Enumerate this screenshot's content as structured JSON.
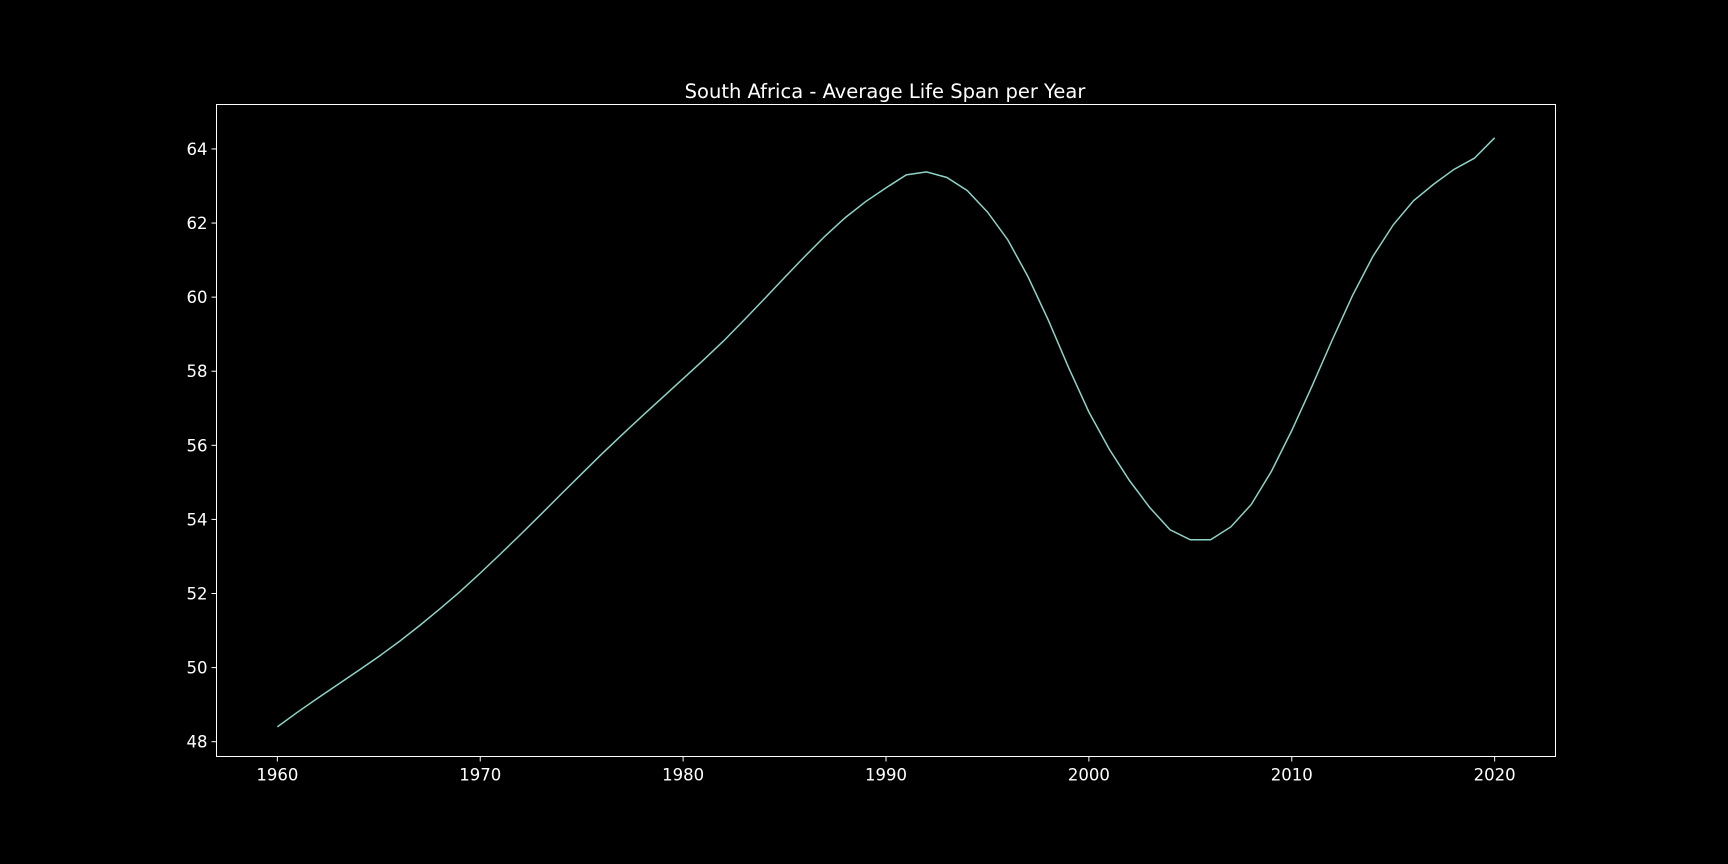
{
  "chart_data": {
    "type": "line",
    "title": "South Africa - Average Life Span per Year",
    "xlabel": "",
    "ylabel": "",
    "xlim": [
      1957,
      2023
    ],
    "ylim": [
      47.6,
      65.2
    ],
    "x_ticks": [
      1960,
      1970,
      1980,
      1990,
      2000,
      2010,
      2020
    ],
    "y_ticks": [
      48,
      50,
      52,
      54,
      56,
      58,
      60,
      62,
      64
    ],
    "grid": false,
    "legend": "none",
    "colors": {
      "background": "#000000",
      "axes": "#ffffff",
      "line": "#8dd3c7"
    },
    "x": [
      1960,
      1961,
      1962,
      1963,
      1964,
      1965,
      1966,
      1967,
      1968,
      1969,
      1970,
      1971,
      1972,
      1973,
      1974,
      1975,
      1976,
      1977,
      1978,
      1979,
      1980,
      1981,
      1982,
      1983,
      1984,
      1985,
      1986,
      1987,
      1988,
      1989,
      1990,
      1991,
      1992,
      1993,
      1994,
      1995,
      1996,
      1997,
      1998,
      1999,
      2000,
      2001,
      2002,
      2003,
      2004,
      2005,
      2006,
      2007,
      2008,
      2009,
      2010,
      2011,
      2012,
      2013,
      2014,
      2015,
      2016,
      2017,
      2018,
      2019,
      2020
    ],
    "series": [
      {
        "values": [
          48.4,
          48.8,
          49.18,
          49.55,
          49.92,
          50.3,
          50.7,
          51.13,
          51.58,
          52.05,
          52.55,
          53.07,
          53.6,
          54.14,
          54.69,
          55.23,
          55.77,
          56.29,
          56.8,
          57.3,
          57.8,
          58.3,
          58.82,
          59.38,
          59.95,
          60.53,
          61.1,
          61.65,
          62.15,
          62.58,
          62.95,
          63.3,
          63.38,
          63.23,
          62.88,
          62.3,
          61.55,
          60.55,
          59.38,
          58.1,
          56.9,
          55.9,
          55.05,
          54.32,
          53.72,
          53.45,
          53.45,
          53.8,
          54.4,
          55.3,
          56.4,
          57.6,
          58.85,
          60.05,
          61.1,
          61.95,
          62.6,
          63.05,
          63.45,
          63.75,
          64.3
        ]
      }
    ]
  }
}
